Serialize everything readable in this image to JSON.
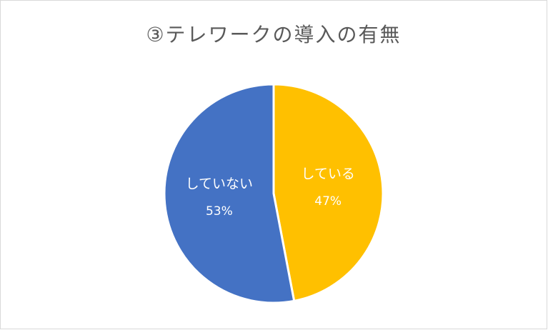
{
  "chart_data": {
    "type": "pie",
    "title": "③テレワークの導入の有無",
    "categories": [
      "している",
      "していない"
    ],
    "values": [
      47,
      53
    ],
    "value_labels": [
      "47%",
      "53%"
    ],
    "colors": [
      "#ffc000",
      "#4472c4"
    ],
    "label_color": "#ffffff"
  }
}
